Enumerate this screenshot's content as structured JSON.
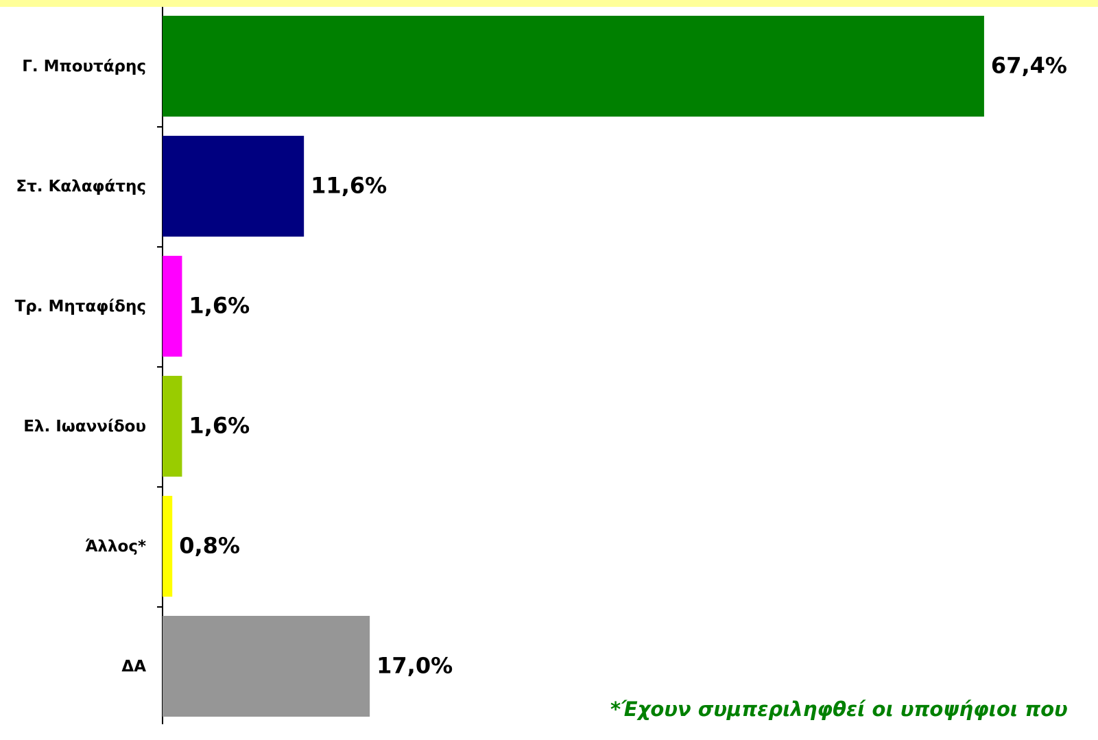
{
  "chart_data": {
    "type": "barh",
    "categories": [
      "Γ. Μπουτάρης",
      "Στ. Καλαφάτης",
      "Τρ. Μηταφίδης",
      "Ελ. Ιωαννίδου",
      "Άλλος*",
      "ΔΑ"
    ],
    "values": [
      67.4,
      11.6,
      1.6,
      1.6,
      0.8,
      17.0
    ],
    "value_labels": [
      "67,4%",
      "11,6%",
      "1,6%",
      "1,6%",
      "0,8%",
      "17,0%"
    ],
    "colors": [
      "#008000",
      "#000080",
      "#ff00ff",
      "#99cc00",
      "#ffff00",
      "#969696"
    ],
    "xlim": [
      0,
      75
    ],
    "annotation": "*Έχουν συμπεριληφθεί οι υποψήφιοι που"
  }
}
